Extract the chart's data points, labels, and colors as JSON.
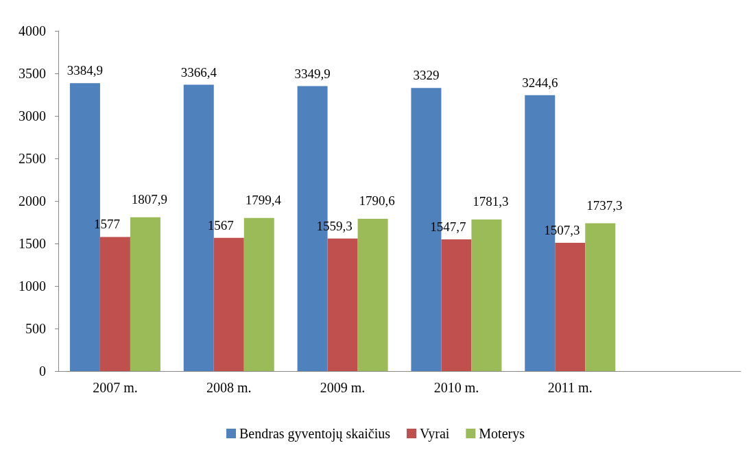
{
  "chart_data": {
    "type": "bar",
    "categories": [
      "2007 m.",
      "2008 m.",
      "2009 m.",
      "2010 m.",
      "2011 m.",
      null
    ],
    "series": [
      {
        "name": "Bendras gyventojų skaičius",
        "color": "#4f81bd",
        "values": [
          3384.9,
          3366.4,
          3349.9,
          3329,
          3244.6,
          null
        ],
        "value_labels": [
          "3384,9",
          "3366,4",
          "3349,9",
          "3329",
          "3244,6",
          null
        ]
      },
      {
        "name": "Vyrai",
        "color": "#c0504d",
        "values": [
          1577,
          1567,
          1559.3,
          1547.7,
          1507.3,
          null
        ],
        "value_labels": [
          "1577",
          "1567",
          "1559,3",
          "1547,7",
          "1507,3",
          null
        ]
      },
      {
        "name": "Moterys",
        "color": "#9bbb59",
        "values": [
          1807.9,
          1799.4,
          1790.6,
          1781.3,
          1737.3,
          null
        ],
        "value_labels": [
          "1807,9",
          "1799,4",
          "1790,6",
          "1781,3",
          "1737,3",
          null
        ]
      }
    ],
    "ylim": [
      0,
      4000
    ],
    "yticks": [
      0,
      500,
      1000,
      1500,
      2000,
      2500,
      3000,
      3500,
      4000
    ],
    "grid": false,
    "legend": "bottom"
  }
}
